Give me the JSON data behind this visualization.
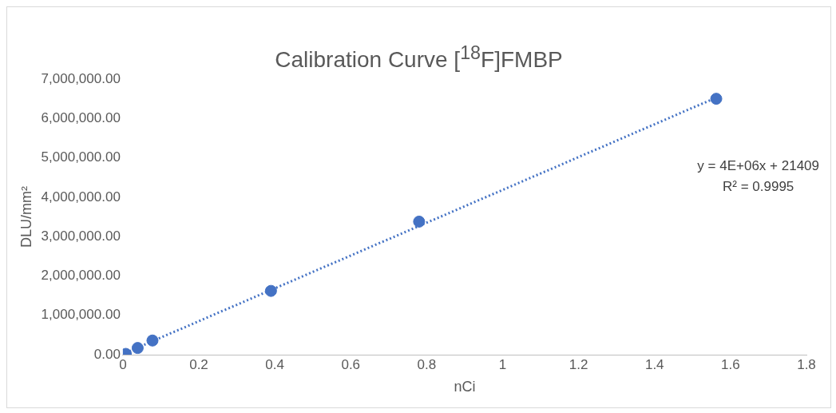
{
  "chart_data": {
    "type": "scatter",
    "title": "Calibration Curve [$^{18}$F]FMBP",
    "xlabel": "nCi",
    "ylabel": "DLU/mm²",
    "series": [
      {
        "type": "scatter",
        "color": "#4472c4",
        "marker": "circle",
        "x": [
          0.0078,
          0.039,
          0.078,
          0.39,
          0.78,
          1.5625
        ],
        "values": [
          20000,
          170000,
          360000,
          1620000,
          3380000,
          6500000
        ]
      },
      {
        "type": "line",
        "color": "#4472c4",
        "line_style": "dotted",
        "marker": "none",
        "x": [
          0.0078,
          1.5625
        ],
        "values": [
          50000,
          6530000
        ]
      }
    ],
    "xlim": [
      0,
      1.8
    ],
    "xticks": [
      0,
      0.2,
      0.4,
      0.6,
      0.8,
      1,
      1.2,
      1.4,
      1.6,
      1.8
    ],
    "ylim": [
      0,
      7000000
    ],
    "yticks": [
      {
        "value": 0,
        "label": "0.00"
      },
      {
        "value": 1000000,
        "label": "1,000,000.00"
      },
      {
        "value": 2000000,
        "label": "2,000,000.00"
      },
      {
        "value": 3000000,
        "label": "3,000,000.00"
      },
      {
        "value": 4000000,
        "label": "4,000,000.00"
      },
      {
        "value": 5000000,
        "label": "5,000,000.00"
      },
      {
        "value": 6000000,
        "label": "6,000,000.00"
      },
      {
        "value": 7000000,
        "label": "7,000,000.00"
      }
    ],
    "annotations": [
      "y = 4E+06x + 21409",
      "R² = 0.9995"
    ],
    "grid": false,
    "legend": false
  }
}
